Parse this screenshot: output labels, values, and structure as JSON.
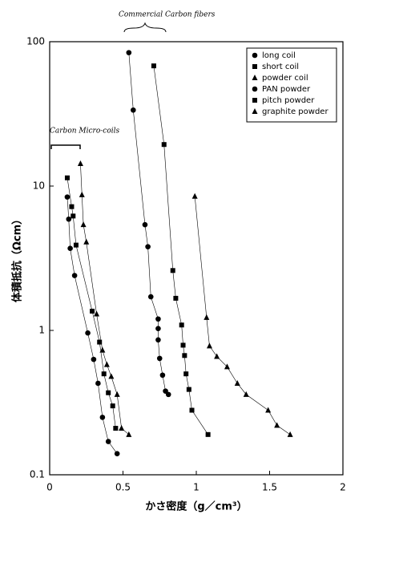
{
  "chart_data": {
    "type": "scatter",
    "x_label": "かさ密度（g／cm³）",
    "y_label": "体積抵抗（Ωcm）",
    "annotations": [
      "Commercial Carbon fibers",
      "Carbon Micro-coils"
    ],
    "xlim": [
      0,
      2
    ],
    "xticks": [
      0,
      0.5,
      1,
      1.5,
      2
    ],
    "ylim": [
      0.1,
      100
    ],
    "yticks": [
      0.1,
      1,
      10,
      100
    ],
    "yscale": "log",
    "legend": "upper right",
    "series": [
      {
        "name": "long coil",
        "color": "#000000",
        "marker": "circle",
        "x": [
          0.12,
          0.13,
          0.14,
          0.17,
          0.26,
          0.3,
          0.33,
          0.36,
          0.4,
          0.46
        ],
        "values": [
          8.4,
          5.9,
          3.7,
          2.4,
          0.96,
          0.63,
          0.43,
          0.25,
          0.17,
          0.14
        ]
      },
      {
        "name": "short coil",
        "color": "#000000",
        "marker": "square",
        "x": [
          0.12,
          0.15,
          0.16,
          0.18,
          0.29,
          0.34,
          0.37,
          0.4,
          0.43,
          0.45
        ],
        "values": [
          11.4,
          7.2,
          6.2,
          3.9,
          1.36,
          0.83,
          0.5,
          0.37,
          0.3,
          0.21
        ]
      },
      {
        "name": "powder coil",
        "color": "#000000",
        "marker": "triangle",
        "x": [
          0.21,
          0.22,
          0.23,
          0.25,
          0.32,
          0.36,
          0.39,
          0.42,
          0.46,
          0.49,
          0.54
        ],
        "values": [
          14.3,
          8.7,
          5.4,
          4.1,
          1.3,
          0.73,
          0.58,
          0.48,
          0.36,
          0.21,
          0.19
        ]
      },
      {
        "name": "PAN powder",
        "color": "#000000",
        "marker": "circle",
        "x": [
          0.54,
          0.57,
          0.65,
          0.67,
          0.69,
          0.74,
          0.74,
          0.74,
          0.75,
          0.77,
          0.79,
          0.81
        ],
        "values": [
          84,
          33.6,
          5.4,
          3.8,
          1.71,
          1.2,
          1.03,
          0.86,
          0.64,
          0.49,
          0.38,
          0.36
        ]
      },
      {
        "name": "pitch powder",
        "color": "#000000",
        "marker": "square",
        "x": [
          0.71,
          0.78,
          0.84,
          0.86,
          0.9,
          0.91,
          0.92,
          0.93,
          0.95,
          0.97,
          1.08
        ],
        "values": [
          68,
          19.4,
          2.6,
          1.67,
          1.09,
          0.79,
          0.67,
          0.5,
          0.39,
          0.28,
          0.19
        ]
      },
      {
        "name": "graphite powder",
        "color": "#000000",
        "marker": "triangle",
        "x": [
          0.99,
          1.07,
          1.09,
          1.14,
          1.21,
          1.28,
          1.34,
          1.49,
          1.55,
          1.64
        ],
        "values": [
          8.5,
          1.23,
          0.78,
          0.66,
          0.56,
          0.43,
          0.36,
          0.28,
          0.22,
          0.19
        ]
      }
    ]
  }
}
